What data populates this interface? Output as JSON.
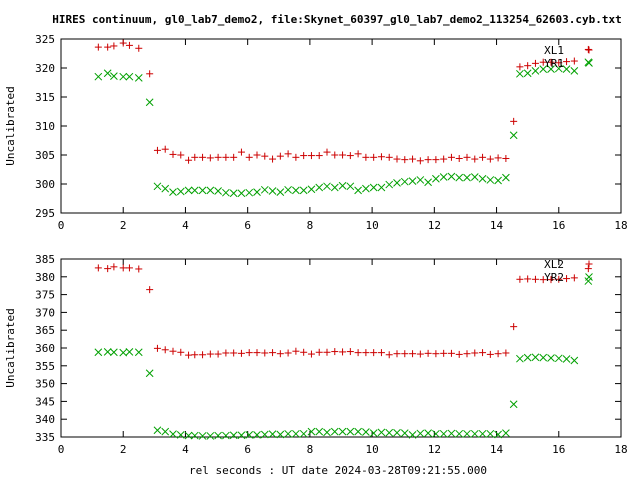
{
  "title": "HIRES continuum, gl0_lab7_demo2, file:Skynet_60397_gl0_lab7_demo2_113254_62603.cyb.txt",
  "xlabel": "rel seconds : UT date 2024-03-28T09:21:55.000",
  "colors": {
    "red": "#cc0000",
    "green": "#00a000",
    "axis": "#000000"
  },
  "chart_data": [
    {
      "type": "scatter",
      "ylabel": "Uncalibrated",
      "xlim": [
        0,
        18
      ],
      "ylim": [
        295,
        325
      ],
      "xticks": [
        0,
        2,
        4,
        6,
        8,
        10,
        12,
        14,
        16,
        18
      ],
      "yticks": [
        295,
        300,
        305,
        310,
        315,
        320,
        325
      ],
      "legend_position": "top-right",
      "series": [
        {
          "name": "XL1",
          "marker": "plus",
          "color": "#cc0000",
          "x": [
            1.2,
            1.5,
            1.7,
            2.0,
            2.2,
            2.5,
            2.85,
            3.1,
            3.35,
            3.6,
            3.85,
            4.1,
            4.3,
            4.55,
            4.8,
            5.05,
            5.3,
            5.55,
            5.8,
            6.05,
            6.3,
            6.55,
            6.8,
            7.05,
            7.3,
            7.55,
            7.8,
            8.05,
            8.3,
            8.55,
            8.8,
            9.05,
            9.3,
            9.55,
            9.8,
            10.05,
            10.3,
            10.55,
            10.8,
            11.05,
            11.3,
            11.55,
            11.8,
            12.05,
            12.3,
            12.55,
            12.8,
            13.05,
            13.3,
            13.55,
            13.8,
            14.05,
            14.3,
            14.55,
            14.75,
            15.0,
            15.25,
            15.5,
            15.75,
            16.0,
            16.25,
            16.5,
            16.95
          ],
          "y": [
            323.6,
            323.6,
            323.8,
            324.3,
            323.9,
            323.4,
            319.0,
            305.8,
            306.0,
            305.1,
            305.0,
            304.1,
            304.6,
            304.6,
            304.5,
            304.6,
            304.6,
            304.6,
            305.5,
            304.6,
            305.0,
            304.8,
            304.3,
            304.8,
            305.2,
            304.6,
            304.9,
            304.9,
            304.9,
            305.5,
            305.0,
            305.0,
            304.9,
            305.2,
            304.6,
            304.6,
            304.7,
            304.6,
            304.3,
            304.2,
            304.3,
            304.0,
            304.2,
            304.2,
            304.3,
            304.6,
            304.4,
            304.6,
            304.3,
            304.6,
            304.3,
            304.5,
            304.4,
            310.8,
            320.2,
            320.4,
            320.8,
            321.0,
            321.0,
            320.9,
            321.1,
            321.2,
            323.2
          ]
        },
        {
          "name": "YR1",
          "marker": "cross",
          "color": "#00a000",
          "x": [
            1.2,
            1.5,
            1.7,
            2.0,
            2.2,
            2.5,
            2.85,
            3.1,
            3.35,
            3.6,
            3.85,
            4.1,
            4.3,
            4.55,
            4.8,
            5.05,
            5.3,
            5.55,
            5.8,
            6.05,
            6.3,
            6.55,
            6.8,
            7.05,
            7.3,
            7.55,
            7.8,
            8.05,
            8.3,
            8.55,
            8.8,
            9.05,
            9.3,
            9.55,
            9.8,
            10.05,
            10.3,
            10.55,
            10.8,
            11.05,
            11.3,
            11.55,
            11.8,
            12.05,
            12.3,
            12.55,
            12.8,
            13.05,
            13.3,
            13.55,
            13.8,
            14.05,
            14.3,
            14.55,
            14.75,
            15.0,
            15.25,
            15.5,
            15.75,
            16.0,
            16.25,
            16.5,
            16.95
          ],
          "y": [
            318.5,
            319.1,
            318.6,
            318.5,
            318.5,
            318.3,
            314.1,
            299.6,
            299.2,
            298.6,
            298.7,
            298.9,
            298.9,
            298.9,
            298.9,
            298.8,
            298.5,
            298.4,
            298.4,
            298.5,
            298.6,
            299.0,
            298.8,
            298.6,
            299.0,
            298.9,
            298.9,
            299.1,
            299.4,
            299.6,
            299.4,
            299.7,
            299.6,
            298.9,
            299.2,
            299.4,
            299.4,
            299.9,
            300.2,
            300.4,
            300.5,
            300.7,
            300.3,
            300.9,
            301.2,
            301.3,
            301.1,
            301.1,
            301.2,
            300.9,
            300.7,
            300.6,
            301.1,
            308.4,
            319.0,
            319.1,
            319.5,
            319.8,
            319.8,
            319.9,
            319.8,
            319.5,
            321.0
          ]
        }
      ]
    },
    {
      "type": "scatter",
      "ylabel": "Uncalibrated",
      "xlim": [
        0,
        18
      ],
      "ylim": [
        335,
        385
      ],
      "xticks": [
        0,
        2,
        4,
        6,
        8,
        10,
        12,
        14,
        16,
        18
      ],
      "yticks": [
        335,
        340,
        345,
        350,
        355,
        360,
        365,
        370,
        375,
        380,
        385
      ],
      "legend_position": "top-right",
      "series": [
        {
          "name": "XL2",
          "marker": "plus",
          "color": "#cc0000",
          "x": [
            1.2,
            1.5,
            1.7,
            2.0,
            2.2,
            2.5,
            2.85,
            3.1,
            3.35,
            3.6,
            3.85,
            4.1,
            4.3,
            4.55,
            4.8,
            5.05,
            5.3,
            5.55,
            5.8,
            6.05,
            6.3,
            6.55,
            6.8,
            7.05,
            7.3,
            7.55,
            7.8,
            8.05,
            8.3,
            8.55,
            8.8,
            9.05,
            9.3,
            9.55,
            9.8,
            10.05,
            10.3,
            10.55,
            10.8,
            11.05,
            11.3,
            11.55,
            11.8,
            12.05,
            12.3,
            12.55,
            12.8,
            13.05,
            13.3,
            13.55,
            13.8,
            14.05,
            14.3,
            14.55,
            14.75,
            15.0,
            15.25,
            15.5,
            15.75,
            16.0,
            16.25,
            16.5,
            16.95
          ],
          "y": [
            382.5,
            382.3,
            382.8,
            382.5,
            382.5,
            382.2,
            376.4,
            359.9,
            359.5,
            359.1,
            358.8,
            358.0,
            358.1,
            358.1,
            358.3,
            358.3,
            358.6,
            358.6,
            358.5,
            358.7,
            358.7,
            358.6,
            358.7,
            358.4,
            358.6,
            359.1,
            358.8,
            358.3,
            358.8,
            358.8,
            359.0,
            358.9,
            359.0,
            358.7,
            358.7,
            358.7,
            358.7,
            358.1,
            358.4,
            358.4,
            358.4,
            358.3,
            358.5,
            358.4,
            358.5,
            358.5,
            358.2,
            358.4,
            358.6,
            358.7,
            358.2,
            358.4,
            358.6,
            366.0,
            379.3,
            379.4,
            379.3,
            379.2,
            379.2,
            379.3,
            379.5,
            379.7,
            382.3
          ]
        },
        {
          "name": "YR2",
          "marker": "cross",
          "color": "#00a000",
          "x": [
            1.2,
            1.5,
            1.7,
            2.0,
            2.2,
            2.5,
            2.85,
            3.1,
            3.35,
            3.6,
            3.85,
            4.1,
            4.3,
            4.55,
            4.8,
            5.05,
            5.3,
            5.55,
            5.8,
            6.05,
            6.3,
            6.55,
            6.8,
            7.05,
            7.3,
            7.55,
            7.8,
            8.05,
            8.3,
            8.55,
            8.8,
            9.05,
            9.3,
            9.55,
            9.8,
            10.05,
            10.3,
            10.55,
            10.8,
            11.05,
            11.3,
            11.55,
            11.8,
            12.05,
            12.3,
            12.55,
            12.8,
            13.05,
            13.3,
            13.55,
            13.8,
            14.05,
            14.3,
            14.55,
            14.75,
            15.0,
            15.25,
            15.5,
            15.75,
            16.0,
            16.25,
            16.5,
            16.95
          ],
          "y": [
            358.8,
            358.9,
            358.8,
            358.7,
            358.9,
            358.8,
            352.9,
            336.9,
            336.5,
            335.8,
            335.6,
            335.4,
            335.4,
            335.3,
            335.3,
            335.4,
            335.4,
            335.5,
            335.5,
            335.6,
            335.6,
            335.7,
            335.8,
            335.7,
            335.9,
            335.9,
            335.9,
            336.5,
            336.5,
            336.3,
            336.5,
            336.5,
            336.5,
            336.5,
            336.4,
            336.1,
            336.3,
            336.2,
            336.2,
            336.1,
            335.6,
            336.0,
            336.1,
            335.9,
            335.9,
            336.0,
            335.9,
            335.9,
            335.9,
            335.9,
            335.9,
            335.7,
            336.1,
            344.2,
            357.0,
            357.3,
            357.4,
            357.3,
            357.2,
            357.1,
            356.9,
            356.5,
            378.8
          ]
        }
      ]
    }
  ]
}
